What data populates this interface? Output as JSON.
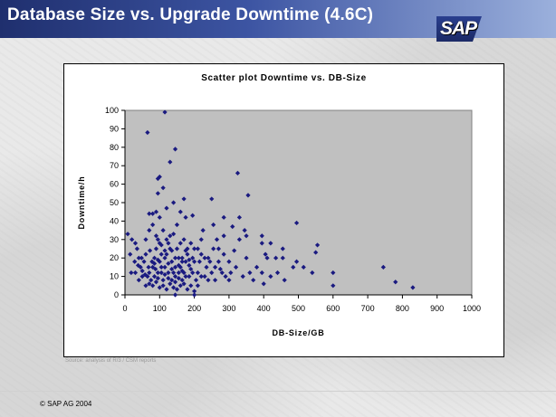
{
  "slide": {
    "title": "Database Size vs. Upgrade Downtime (4.6C)",
    "logo": "SAP",
    "source": "Source: analysis of R/3 / CSM reports",
    "footer": "©  SAP AG 2004"
  },
  "chart_data": {
    "type": "scatter",
    "title": "Scatter plot Downtime vs. DB-Size",
    "xlabel": "DB-Size/GB",
    "ylabel": "Downtime/h",
    "xlim": [
      0,
      1000
    ],
    "ylim": [
      0,
      100
    ],
    "xticks": [
      "0",
      "100",
      "200",
      "300",
      "400",
      "500",
      "600",
      "700",
      "800",
      "900",
      "1000"
    ],
    "yticks": [
      "0",
      "10",
      "20",
      "30",
      "40",
      "50",
      "60",
      "70",
      "80",
      "90",
      "100"
    ],
    "grid": false,
    "marker_color": "#1a1a80",
    "plot_bg": "#c0c0c0",
    "points": [
      [
        115,
        99
      ],
      [
        65,
        88
      ],
      [
        145,
        79
      ],
      [
        100,
        64
      ],
      [
        95,
        63
      ],
      [
        130,
        72
      ],
      [
        325,
        66
      ],
      [
        95,
        55
      ],
      [
        110,
        58
      ],
      [
        355,
        54
      ],
      [
        250,
        52
      ],
      [
        170,
        52
      ],
      [
        70,
        44
      ],
      [
        80,
        44
      ],
      [
        90,
        45
      ],
      [
        100,
        42
      ],
      [
        120,
        47
      ],
      [
        140,
        50
      ],
      [
        160,
        45
      ],
      [
        175,
        42
      ],
      [
        195,
        43
      ],
      [
        285,
        42
      ],
      [
        495,
        39
      ],
      [
        330,
        42
      ],
      [
        345,
        35
      ],
      [
        310,
        37
      ],
      [
        255,
        38
      ],
      [
        225,
        35
      ],
      [
        265,
        30
      ],
      [
        285,
        32
      ],
      [
        330,
        30
      ],
      [
        350,
        32
      ],
      [
        395,
        32
      ],
      [
        395,
        28
      ],
      [
        420,
        28
      ],
      [
        455,
        25
      ],
      [
        555,
        27
      ],
      [
        550,
        23
      ],
      [
        405,
        22
      ],
      [
        410,
        20
      ],
      [
        435,
        20
      ],
      [
        455,
        20
      ],
      [
        495,
        18
      ],
      [
        515,
        15
      ],
      [
        540,
        12
      ],
      [
        600,
        12
      ],
      [
        485,
        15
      ],
      [
        600,
        5
      ],
      [
        745,
        15
      ],
      [
        780,
        7
      ],
      [
        830,
        4
      ],
      [
        8,
        33
      ],
      [
        15,
        22
      ],
      [
        20,
        30
      ],
      [
        30,
        28
      ],
      [
        35,
        25
      ],
      [
        40,
        20
      ],
      [
        45,
        15
      ],
      [
        50,
        13
      ],
      [
        55,
        18
      ],
      [
        60,
        22
      ],
      [
        65,
        10
      ],
      [
        70,
        12
      ],
      [
        75,
        8
      ],
      [
        80,
        15
      ],
      [
        85,
        20
      ],
      [
        90,
        25
      ],
      [
        95,
        30
      ],
      [
        100,
        18
      ],
      [
        105,
        12
      ],
      [
        110,
        8
      ],
      [
        115,
        15
      ],
      [
        120,
        22
      ],
      [
        125,
        28
      ],
      [
        130,
        32
      ],
      [
        135,
        18
      ],
      [
        140,
        12
      ],
      [
        145,
        10
      ],
      [
        150,
        25
      ],
      [
        155,
        20
      ],
      [
        160,
        15
      ],
      [
        165,
        8
      ],
      [
        170,
        12
      ],
      [
        175,
        18
      ],
      [
        180,
        22
      ],
      [
        185,
        10
      ],
      [
        190,
        14
      ],
      [
        195,
        20
      ],
      [
        200,
        25
      ],
      [
        205,
        8
      ],
      [
        210,
        12
      ],
      [
        215,
        18
      ],
      [
        220,
        22
      ],
      [
        230,
        10
      ],
      [
        235,
        15
      ],
      [
        240,
        20
      ],
      [
        250,
        12
      ],
      [
        255,
        25
      ],
      [
        260,
        8
      ],
      [
        270,
        18
      ],
      [
        275,
        14
      ],
      [
        290,
        10
      ],
      [
        300,
        8
      ],
      [
        305,
        12
      ],
      [
        320,
        15
      ],
      [
        340,
        10
      ],
      [
        350,
        20
      ],
      [
        360,
        12
      ],
      [
        370,
        8
      ],
      [
        380,
        15
      ],
      [
        395,
        12
      ],
      [
        400,
        6
      ],
      [
        420,
        10
      ],
      [
        440,
        12
      ],
      [
        460,
        8
      ],
      [
        60,
        30
      ],
      [
        70,
        35
      ],
      [
        80,
        38
      ],
      [
        90,
        32
      ],
      [
        100,
        28
      ],
      [
        110,
        35
      ],
      [
        120,
        30
      ],
      [
        130,
        25
      ],
      [
        140,
        33
      ],
      [
        150,
        38
      ],
      [
        160,
        28
      ],
      [
        170,
        30
      ],
      [
        180,
        25
      ],
      [
        190,
        28
      ],
      [
        200,
        18
      ],
      [
        210,
        25
      ],
      [
        220,
        30
      ],
      [
        30,
        12
      ],
      [
        40,
        8
      ],
      [
        50,
        10
      ],
      [
        60,
        5
      ],
      [
        70,
        6
      ],
      [
        80,
        5
      ],
      [
        90,
        7
      ],
      [
        100,
        4
      ],
      [
        110,
        5
      ],
      [
        120,
        3
      ],
      [
        130,
        6
      ],
      [
        140,
        4
      ],
      [
        150,
        3
      ],
      [
        160,
        5
      ],
      [
        170,
        6
      ],
      [
        180,
        3
      ],
      [
        190,
        5
      ],
      [
        200,
        2
      ],
      [
        85,
        10
      ],
      [
        95,
        12
      ],
      [
        105,
        15
      ],
      [
        115,
        20
      ],
      [
        125,
        12
      ],
      [
        135,
        8
      ],
      [
        145,
        15
      ],
      [
        155,
        12
      ],
      [
        165,
        20
      ],
      [
        175,
        10
      ],
      [
        185,
        16
      ],
      [
        195,
        12
      ],
      [
        85,
        17
      ],
      [
        95,
        9
      ],
      [
        105,
        22
      ],
      [
        115,
        11
      ],
      [
        125,
        17
      ],
      [
        135,
        24
      ],
      [
        145,
        20
      ],
      [
        155,
        16
      ],
      [
        165,
        13
      ],
      [
        175,
        24
      ],
      [
        185,
        19
      ],
      [
        125,
        9
      ],
      [
        135,
        14
      ],
      [
        145,
        7
      ],
      [
        155,
        9
      ],
      [
        165,
        18
      ],
      [
        115,
        24
      ],
      [
        105,
        27
      ],
      [
        95,
        19
      ],
      [
        88,
        14
      ],
      [
        78,
        18
      ],
      [
        72,
        24
      ],
      [
        68,
        15
      ],
      [
        58,
        11
      ],
      [
        48,
        20
      ],
      [
        38,
        16
      ],
      [
        28,
        18
      ],
      [
        18,
        12
      ],
      [
        210,
        5
      ],
      [
        220,
        10
      ],
      [
        240,
        8
      ],
      [
        260,
        15
      ],
      [
        280,
        12
      ],
      [
        230,
        20
      ],
      [
        245,
        18
      ],
      [
        270,
        25
      ],
      [
        285,
        22
      ],
      [
        300,
        18
      ],
      [
        315,
        24
      ],
      [
        145,
        0
      ],
      [
        200,
        0
      ]
    ]
  }
}
